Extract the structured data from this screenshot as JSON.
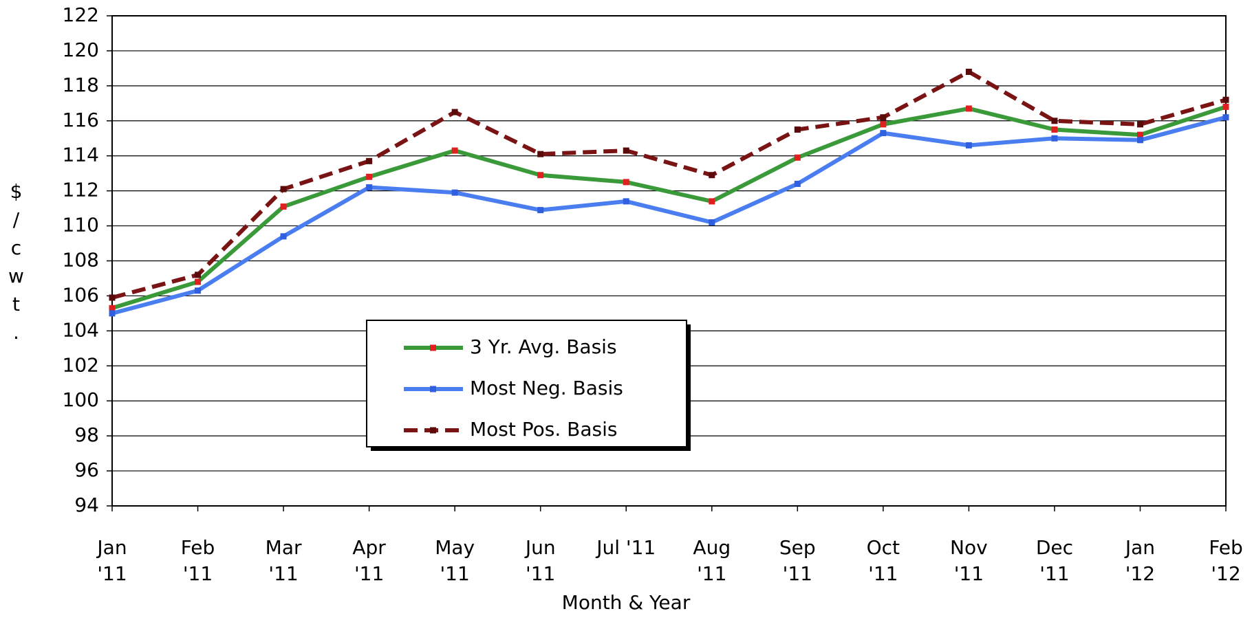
{
  "chart_data": {
    "type": "line",
    "x_label": "Month & Year",
    "y_label": "$/cwt.",
    "categories": [
      [
        "Jan",
        "'11"
      ],
      [
        "Feb",
        "'11"
      ],
      [
        "Mar",
        "'11"
      ],
      [
        "Apr",
        "'11"
      ],
      [
        "May",
        "'11"
      ],
      [
        "Jun",
        "'11"
      ],
      [
        "Jul '11"
      ],
      [
        "Aug",
        "'11"
      ],
      [
        "Sep",
        "'11"
      ],
      [
        "Oct",
        "'11"
      ],
      [
        "Nov",
        "'11"
      ],
      [
        "Dec",
        "'11"
      ],
      [
        "Jan",
        "'12"
      ],
      [
        "Feb",
        "'12"
      ]
    ],
    "series": [
      {
        "name": "3 Yr. Avg. Basis",
        "color": "#3a9a3a",
        "marker_color": "#e02020",
        "dashed": false,
        "values": [
          105.3,
          106.8,
          111.1,
          112.8,
          114.3,
          112.9,
          112.5,
          111.4,
          113.9,
          115.8,
          116.7,
          115.5,
          115.2,
          116.8
        ]
      },
      {
        "name": "Most Neg. Basis",
        "color": "#4a7ef0",
        "marker_color": "#3060e0",
        "dashed": false,
        "values": [
          105.0,
          106.3,
          109.4,
          112.2,
          111.9,
          110.9,
          111.4,
          110.2,
          112.4,
          115.3,
          114.6,
          115.0,
          114.9,
          116.2
        ]
      },
      {
        "name": "Most Pos. Basis",
        "color": "#7a1414",
        "marker_color": "#5a0a0a",
        "dashed": true,
        "values": [
          105.9,
          107.2,
          112.1,
          113.7,
          116.5,
          114.1,
          114.3,
          112.9,
          115.5,
          116.2,
          118.8,
          116.0,
          115.8,
          117.2
        ]
      }
    ],
    "ylim": [
      94,
      122
    ],
    "yticks": [
      94,
      96,
      98,
      100,
      102,
      104,
      106,
      108,
      110,
      112,
      114,
      116,
      118,
      120,
      122
    ],
    "grid": true
  }
}
